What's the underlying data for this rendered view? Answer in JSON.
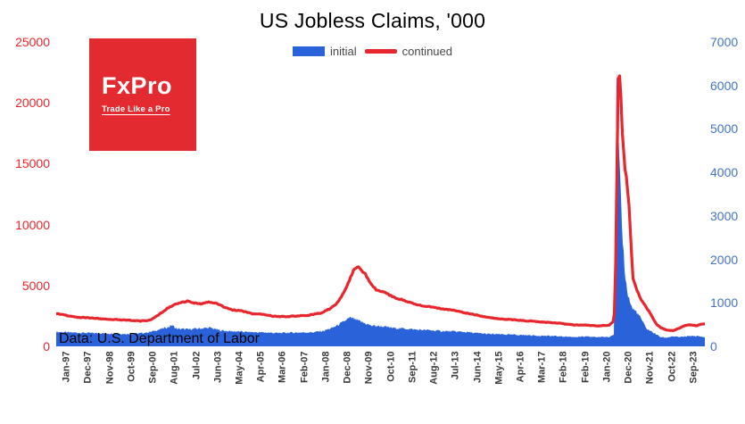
{
  "title": "US Jobless Claims, '000",
  "legend": {
    "initial_label": "initial",
    "continued_label": "continued"
  },
  "logo": {
    "name": "FxPro",
    "tagline": "Trade Like a Pro",
    "background": "#e32a30"
  },
  "source_note": "Data: U.S. Department of Labor",
  "colors": {
    "bar_blue": "#2a62d9",
    "line_red": "#e8262d",
    "left_axis_red": "#e8262d",
    "right_axis_blue": "#4472c4"
  },
  "chart_data": {
    "type": "combo (bar + line)",
    "title": "US Jobless Claims, '000",
    "legend_entries": [
      {
        "name": "initial",
        "type": "bar",
        "axis": "right",
        "color": "#2a62d9"
      },
      {
        "name": "continued",
        "type": "line",
        "axis": "left",
        "color": "#e8262d"
      }
    ],
    "grid": "off",
    "x_domain": [
      1997.0,
      2023.95
    ],
    "left_axis": {
      "max": 25000,
      "ticks": [
        0,
        5000,
        10000,
        15000,
        20000,
        25000
      ]
    },
    "right_axis": {
      "max": 7000,
      "ticks": [
        0,
        1000,
        2000,
        3000,
        4000,
        5000,
        6000,
        7000
      ]
    },
    "x_tick_labels": [
      "Jan-97",
      "Dec-97",
      "Nov-98",
      "Oct-99",
      "Sep-00",
      "Aug-01",
      "Jul-02",
      "Jun-03",
      "May-04",
      "Apr-05",
      "Mar-06",
      "Feb-07",
      "Jan-08",
      "Dec-08",
      "Nov-09",
      "Oct-10",
      "Sep-11",
      "Aug-12",
      "Jul-13",
      "Jun-14",
      "May-15",
      "Apr-16",
      "Mar-17",
      "Feb-18",
      "Feb-19",
      "Jan-20",
      "Dec-20",
      "Nov-21",
      "Oct-22",
      "Sep-23"
    ],
    "series": {
      "continued": {
        "axis": "left",
        "units": "thousands",
        "keypoints": [
          [
            1997.0,
            2700
          ],
          [
            1997.4,
            2550
          ],
          [
            1997.8,
            2400
          ],
          [
            1998.2,
            2350
          ],
          [
            1998.6,
            2300
          ],
          [
            1999.0,
            2250
          ],
          [
            1999.5,
            2200
          ],
          [
            2000.0,
            2150
          ],
          [
            2000.5,
            2080
          ],
          [
            2000.9,
            2150
          ],
          [
            2001.2,
            2500
          ],
          [
            2001.6,
            3100
          ],
          [
            2001.9,
            3400
          ],
          [
            2002.2,
            3600
          ],
          [
            2002.45,
            3700
          ],
          [
            2002.7,
            3550
          ],
          [
            2003.0,
            3500
          ],
          [
            2003.3,
            3650
          ],
          [
            2003.6,
            3550
          ],
          [
            2003.9,
            3300
          ],
          [
            2004.3,
            3000
          ],
          [
            2004.7,
            2900
          ],
          [
            2005.1,
            2700
          ],
          [
            2005.6,
            2620
          ],
          [
            2006.0,
            2480
          ],
          [
            2006.5,
            2430
          ],
          [
            2007.0,
            2500
          ],
          [
            2007.5,
            2550
          ],
          [
            2008.0,
            2750
          ],
          [
            2008.4,
            3100
          ],
          [
            2008.7,
            3600
          ],
          [
            2008.95,
            4400
          ],
          [
            2009.2,
            5500
          ],
          [
            2009.35,
            6200
          ],
          [
            2009.5,
            6550
          ],
          [
            2009.65,
            6350
          ],
          [
            2009.85,
            5900
          ],
          [
            2010.05,
            5200
          ],
          [
            2010.3,
            4650
          ],
          [
            2010.6,
            4480
          ],
          [
            2011.0,
            4050
          ],
          [
            2011.5,
            3750
          ],
          [
            2012.0,
            3400
          ],
          [
            2012.5,
            3250
          ],
          [
            2013.0,
            3100
          ],
          [
            2013.5,
            2950
          ],
          [
            2014.0,
            2750
          ],
          [
            2014.5,
            2550
          ],
          [
            2015.0,
            2350
          ],
          [
            2015.5,
            2250
          ],
          [
            2016.0,
            2180
          ],
          [
            2016.5,
            2100
          ],
          [
            2017.0,
            2030
          ],
          [
            2017.5,
            1950
          ],
          [
            2018.0,
            1880
          ],
          [
            2018.5,
            1760
          ],
          [
            2019.0,
            1740
          ],
          [
            2019.5,
            1680
          ],
          [
            2019.95,
            1730
          ],
          [
            2020.18,
            2100
          ],
          [
            2020.26,
            8000
          ],
          [
            2020.33,
            20000
          ],
          [
            2020.37,
            23100
          ],
          [
            2020.43,
            21800
          ],
          [
            2020.52,
            17500
          ],
          [
            2020.62,
            14800
          ],
          [
            2020.72,
            13400
          ],
          [
            2020.8,
            11500
          ],
          [
            2020.88,
            8500
          ],
          [
            2020.96,
            5600
          ],
          [
            2021.08,
            4900
          ],
          [
            2021.25,
            4000
          ],
          [
            2021.45,
            3400
          ],
          [
            2021.62,
            2900
          ],
          [
            2021.8,
            2300
          ],
          [
            2021.95,
            1800
          ],
          [
            2022.15,
            1500
          ],
          [
            2022.4,
            1320
          ],
          [
            2022.65,
            1300
          ],
          [
            2022.9,
            1500
          ],
          [
            2023.1,
            1680
          ],
          [
            2023.35,
            1780
          ],
          [
            2023.6,
            1700
          ],
          [
            2023.92,
            1860
          ]
        ]
      },
      "initial": {
        "axis": "right",
        "units": "thousands",
        "keypoints": [
          [
            1997.0,
            335
          ],
          [
            1997.5,
            320
          ],
          [
            1998.0,
            312
          ],
          [
            1998.5,
            305
          ],
          [
            1999.0,
            298
          ],
          [
            1999.5,
            292
          ],
          [
            2000.0,
            283
          ],
          [
            2000.5,
            300
          ],
          [
            2000.9,
            330
          ],
          [
            2001.3,
            390
          ],
          [
            2001.7,
            450
          ],
          [
            2001.8,
            490
          ],
          [
            2002.0,
            405
          ],
          [
            2002.5,
            392
          ],
          [
            2003.0,
            412
          ],
          [
            2003.4,
            428
          ],
          [
            2003.8,
            368
          ],
          [
            2004.2,
            348
          ],
          [
            2004.7,
            338
          ],
          [
            2005.2,
            325
          ],
          [
            2005.7,
            318
          ],
          [
            2006.2,
            305
          ],
          [
            2006.7,
            315
          ],
          [
            2007.2,
            318
          ],
          [
            2007.7,
            325
          ],
          [
            2008.1,
            355
          ],
          [
            2008.5,
            430
          ],
          [
            2008.9,
            550
          ],
          [
            2009.1,
            625
          ],
          [
            2009.25,
            655
          ],
          [
            2009.5,
            600
          ],
          [
            2009.8,
            535
          ],
          [
            2010.1,
            475
          ],
          [
            2010.5,
            462
          ],
          [
            2011.0,
            422
          ],
          [
            2011.5,
            408
          ],
          [
            2012.0,
            382
          ],
          [
            2012.5,
            372
          ],
          [
            2013.0,
            352
          ],
          [
            2013.5,
            343
          ],
          [
            2014.0,
            330
          ],
          [
            2014.5,
            302
          ],
          [
            2015.0,
            282
          ],
          [
            2015.5,
            275
          ],
          [
            2016.0,
            268
          ],
          [
            2016.5,
            258
          ],
          [
            2017.0,
            246
          ],
          [
            2017.5,
            240
          ],
          [
            2018.0,
            228
          ],
          [
            2018.5,
            216
          ],
          [
            2019.0,
            222
          ],
          [
            2019.5,
            214
          ],
          [
            2019.95,
            218
          ],
          [
            2020.18,
            280
          ],
          [
            2020.24,
            3300
          ],
          [
            2020.28,
            6100
          ],
          [
            2020.33,
            5300
          ],
          [
            2020.38,
            4400
          ],
          [
            2020.44,
            3600
          ],
          [
            2020.5,
            2800
          ],
          [
            2020.58,
            2100
          ],
          [
            2020.66,
            1500
          ],
          [
            2020.75,
            1200
          ],
          [
            2020.85,
            1000
          ],
          [
            2020.95,
            860
          ],
          [
            2021.1,
            800
          ],
          [
            2021.3,
            640
          ],
          [
            2021.5,
            420
          ],
          [
            2021.7,
            350
          ],
          [
            2021.9,
            285
          ],
          [
            2022.1,
            215
          ],
          [
            2022.35,
            198
          ],
          [
            2022.6,
            232
          ],
          [
            2022.85,
            212
          ],
          [
            2023.1,
            222
          ],
          [
            2023.4,
            242
          ],
          [
            2023.65,
            232
          ],
          [
            2023.92,
            214
          ]
        ]
      }
    }
  }
}
